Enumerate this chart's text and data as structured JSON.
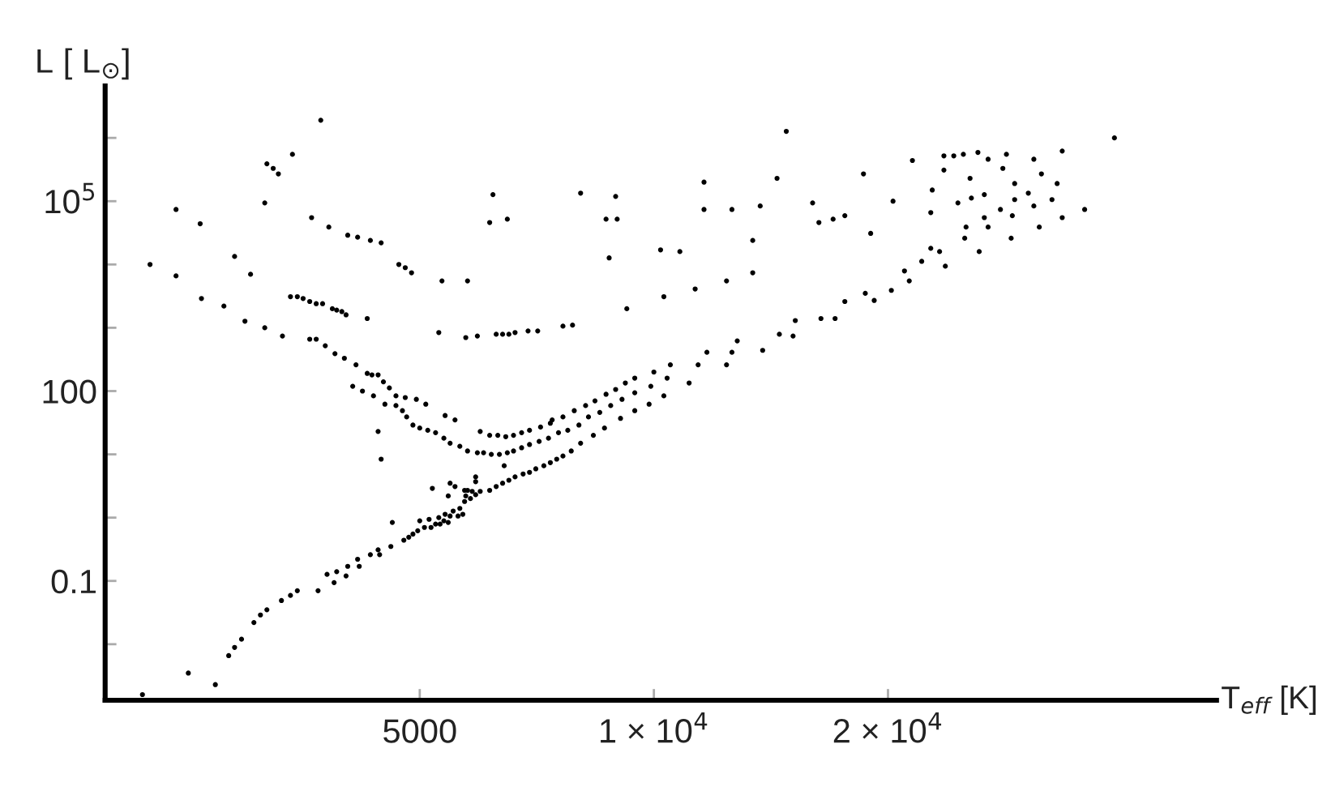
{
  "chart_data": {
    "type": "scatter",
    "xlabel": "T$_{eff}$ [K]",
    "ylabel": "L [ L$_{⊙}$]",
    "log": "xy",
    "grid": false,
    "marker": "circle",
    "xlim": [
      1970,
      52900
    ],
    "ylim": [
      0.0013,
      6600000
    ],
    "xticks": [
      5000,
      {
        "value": 10000,
        "label": "1 × 10$^{4}$"
      },
      {
        "value": 20000,
        "label": "2 × 10$^{4}$"
      }
    ],
    "yticks": [
      {
        "value": 0.01,
        "label": null
      },
      {
        "value": 0.1,
        "label": "0.1"
      },
      {
        "value": 1,
        "label": null
      },
      {
        "value": 10,
        "label": null
      },
      100,
      {
        "value": 1000,
        "label": null
      },
      {
        "value": 10000,
        "label": null
      },
      {
        "value": 100000,
        "label": "10$^{5}$"
      },
      {
        "value": 1000000,
        "label": null
      }
    ],
    "series": [
      {
        "color": "#000000",
        "x": [
          3730,
          3430,
          3180,
          3240,
          3290,
          2430,
          3160,
          2610,
          3630,
          3820,
          4040,
          4160,
          4320,
          4460,
          4700,
          4790,
          4880,
          5340,
          5760,
          2250,
          2430,
          2890,
          3030,
          2620,
          2800,
          2980,
          3160,
          3330,
          3410,
          3480,
          3540,
          3610,
          3680,
          3750,
          3860,
          3910,
          3970,
          4020,
          4280,
          3610,
          3680,
          3780,
          3890,
          4000,
          4140,
          4280,
          4340,
          4420,
          4490,
          4570,
          4100,
          4220,
          4360,
          4510,
          4660,
          4790,
          4950,
          5090,
          4660,
          4750,
          4810,
          5290,
          5730,
          5930,
          5390,
          5550,
          14800,
          6210,
          6150,
          6480,
          8050,
          8930,
          8680,
          8970,
          8760,
          11600,
          11600,
          12600,
          14400,
          13700,
          16000,
          16300,
          17000,
          17600,
          10200,
          10800,
          13400,
          13400,
          12400,
          11300,
          10300,
          9230,
          6270,
          6390,
          6510,
          6630,
          6890,
          7090,
          7640,
          7860,
          17600,
          16400,
          17100,
          15200,
          14500,
          15100,
          12800,
          11700,
          12600,
          13800,
          10500,
          11400,
          12400,
          10000,
          10400,
          11100,
          9450,
          9190,
          8930,
          8680,
          8400,
          8170,
          7900,
          7640,
          7400,
          9910,
          9450,
          9100,
          8800,
          8520,
          8240,
          10300,
          9860,
          9450,
          9060,
          39100,
          21500,
          18600,
          23600,
          24300,
          25000,
          26100,
          26900,
          28400,
          30800,
          33500,
          23600,
          28100,
          31500,
          25500,
          29100,
          33000,
          22800,
          30300,
          26600,
          25600,
          24600,
          29100,
          32500,
          20300,
          30800,
          35800,
          27900,
          22700,
          26600,
          28900,
          33500,
          19000,
          25200,
          26900,
          31300,
          25100,
          28800,
          22700,
          23300,
          26200,
          23700,
          22100,
          21000,
          21300,
          20200,
          18700,
          19200,
          2200,
          2520,
          2730,
          2840,
          2890,
          2950,
          3060,
          3120,
          3180,
          3320,
          3410,
          3480,
          3700,
          3800,
          3880,
          3910,
          4020,
          4040,
          4160,
          4180,
          4320,
          4420,
          4440,
          4590,
          4610,
          4770,
          4840,
          4900,
          4970,
          5000,
          5070,
          5140,
          5170,
          5240,
          5290,
          5310,
          5370,
          5390,
          5440,
          5470,
          5520,
          5600,
          5630,
          5680,
          5710,
          5730,
          5810,
          5840,
          5900,
          5190,
          5470,
          5550,
          5440,
          5710,
          5760,
          5900,
          5900,
          4420,
          4460,
          4900,
          5000,
          5120,
          5240,
          5370,
          5470,
          5630,
          5760,
          5930,
          6040,
          6180,
          6330,
          6480,
          6600,
          6760,
          6920,
          7120,
          7320,
          7540,
          7750,
          8010,
          5980,
          6150,
          6300,
          6450,
          6600,
          6760,
          6920,
          7150,
          7360,
          6420,
          5980,
          6150,
          6270,
          6390,
          6510,
          6630,
          6790,
          6920,
          7050,
          7220,
          7360,
          7500,
          7640,
          7830,
          8050,
          8360,
          8640
        ],
        "values": [
          1900000,
          550000,
          390000,
          330000,
          270000,
          74000,
          94000,
          44000,
          55000,
          39000,
          29000,
          27000,
          24000,
          22000,
          10000,
          8900,
          7400,
          5500,
          5500,
          10000,
          6600,
          13400,
          7000,
          2900,
          2200,
          1270,
          1000,
          740,
          3100,
          3100,
          2900,
          2600,
          2400,
          2400,
          2000,
          1900,
          1800,
          1600,
          1400,
          660,
          660,
          520,
          390,
          330,
          260,
          190,
          180,
          180,
          140,
          112,
          119,
          100,
          84,
          62,
          84,
          79,
          74,
          62,
          59,
          49,
          39,
          840,
          700,
          740,
          41,
          35,
          1270000,
          127000,
          46000,
          52000,
          134000,
          119000,
          52000,
          52000,
          12700,
          200000,
          74000,
          74000,
          230000,
          84000,
          94000,
          46000,
          52000,
          59000,
          17000,
          16000,
          24000,
          7400,
          5500,
          4100,
          3100,
          2000,
          790,
          790,
          790,
          840,
          890,
          890,
          1060,
          1100,
          2600,
          1400,
          1400,
          1300,
          790,
          740,
          620,
          410,
          410,
          440,
          260,
          260,
          260,
          200,
          160,
          134,
          160,
          134,
          106,
          89,
          70,
          59,
          49,
          39,
          35,
          119,
          94,
          74,
          59,
          46,
          39,
          84,
          62,
          49,
          37,
          1000000,
          440000,
          270000,
          520000,
          520000,
          550000,
          590000,
          460000,
          550000,
          460000,
          620000,
          310000,
          330000,
          270000,
          230000,
          190000,
          190000,
          150000,
          134000,
          127000,
          112000,
          94000,
          106000,
          106000,
          100000,
          84000,
          74000,
          74000,
          66000,
          55000,
          59000,
          55000,
          31000,
          39000,
          39000,
          39000,
          26000,
          26000,
          18000,
          16000,
          16000,
          9400,
          11200,
          7900,
          5500,
          3900,
          3500,
          2700,
          0.0016,
          0.0035,
          0.0023,
          0.0066,
          0.0089,
          0.012,
          0.022,
          0.029,
          0.035,
          0.049,
          0.059,
          0.07,
          0.07,
          0.127,
          0.094,
          0.14,
          0.12,
          0.17,
          0.22,
          0.17,
          0.26,
          0.31,
          0.26,
          0.35,
          0.84,
          0.44,
          0.49,
          0.55,
          0.62,
          0.89,
          0.7,
          0.94,
          0.7,
          0.79,
          1.0,
          0.79,
          0.89,
          1.13,
          0.84,
          1.06,
          1.27,
          1.06,
          1.4,
          1.13,
          1.8,
          2.2,
          2.0,
          2.6,
          2.3,
          2.9,
          3.5,
          3.1,
          2.2,
          2.7,
          2.7,
          4.4,
          3.7,
          23,
          8.4,
          29,
          26,
          24,
          22,
          18,
          15,
          13.4,
          11.3,
          10.6,
          10.6,
          10,
          10,
          10.6,
          11.3,
          12.7,
          14.3,
          16,
          18,
          22,
          24,
          29,
          23,
          20,
          20,
          19,
          20,
          22,
          24,
          27,
          31,
          6.6,
          2.6,
          2.7,
          3.1,
          3.5,
          3.9,
          4.4,
          4.9,
          5.2,
          5.9,
          6.6,
          7.4,
          8.4,
          9.4,
          11.3,
          15,
          20,
          26
        ]
      }
    ]
  }
}
